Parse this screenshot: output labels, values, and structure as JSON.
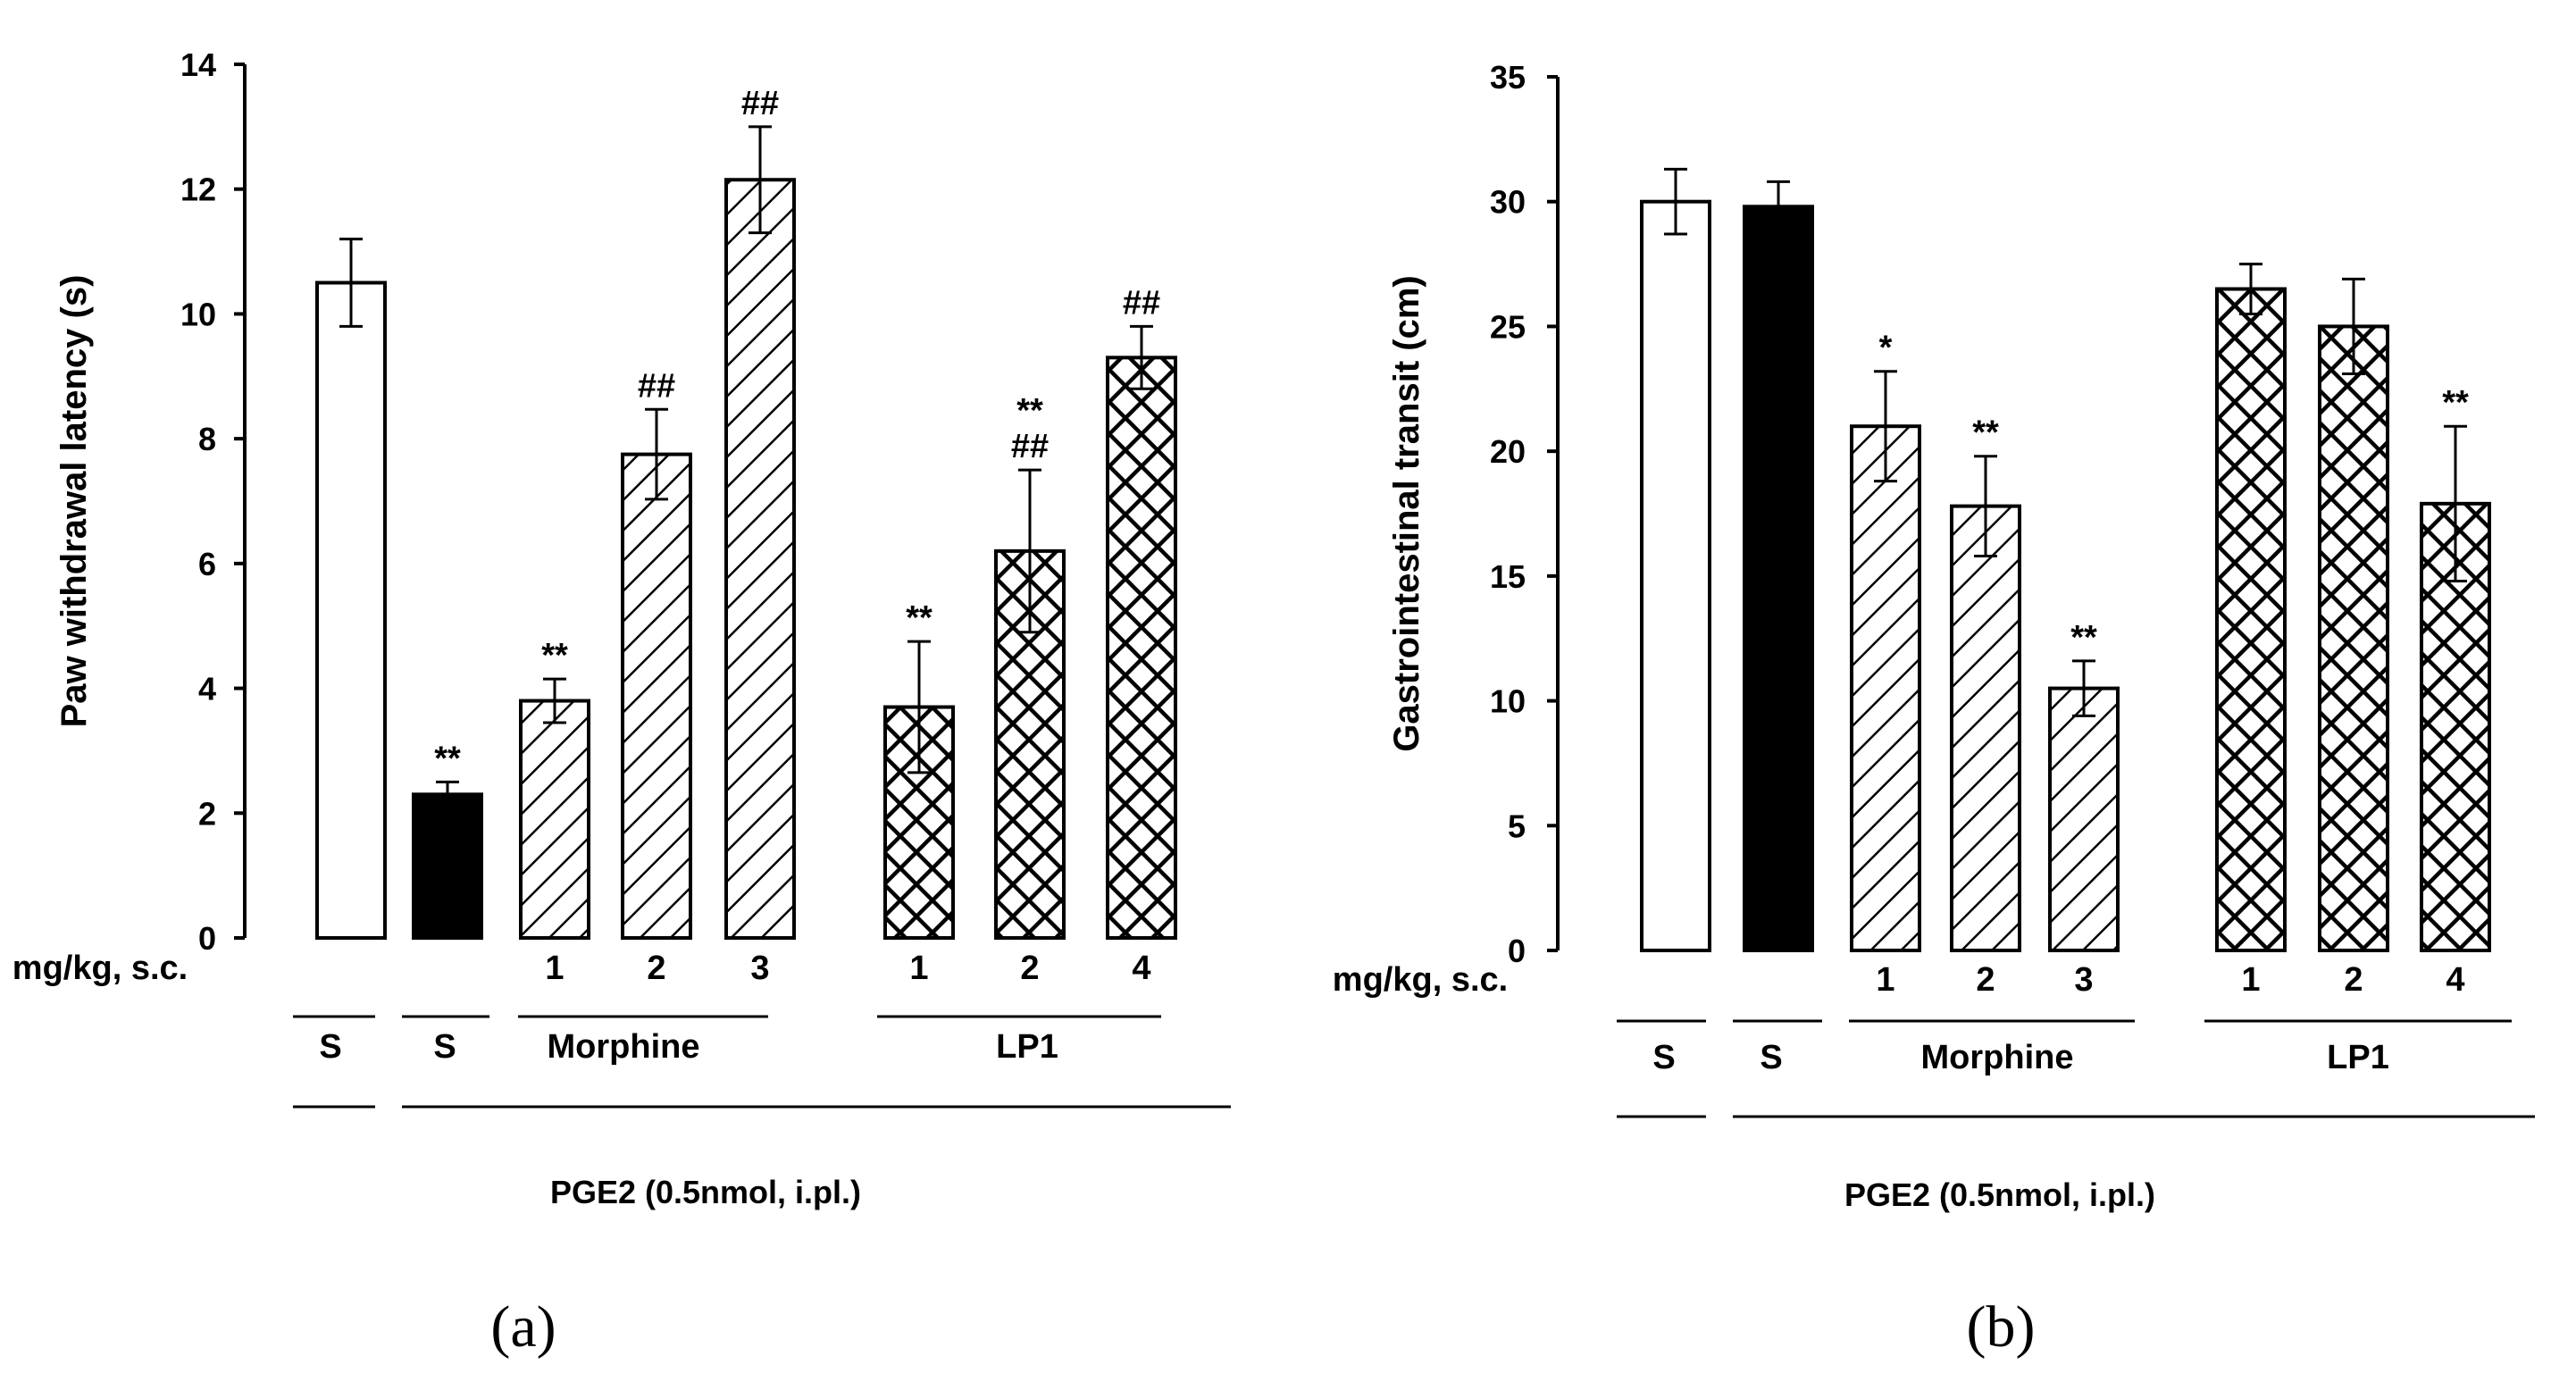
{
  "chart_data": [
    {
      "type": "bar",
      "panel_label": "(a)",
      "ylabel": "Paw withdrawal latency (s)",
      "ylim": [
        0,
        14
      ],
      "yticks": [
        0,
        2,
        4,
        6,
        8,
        10,
        12,
        14
      ],
      "dose_axis_label": "mg/kg, s.c.",
      "bars": [
        {
          "group": "S",
          "dose": "",
          "fill": "white",
          "value": 10.5,
          "err": 0.7,
          "annotations": []
        },
        {
          "group": "S",
          "dose": "",
          "fill": "black",
          "value": 2.3,
          "err": 0.2,
          "annotations": [
            "**"
          ]
        },
        {
          "group": "Morphine",
          "dose": "1",
          "fill": "hatch",
          "value": 3.8,
          "err": 0.35,
          "annotations": [
            "**"
          ]
        },
        {
          "group": "Morphine",
          "dose": "2",
          "fill": "hatch",
          "value": 7.75,
          "err": 0.72,
          "annotations": [
            "##"
          ]
        },
        {
          "group": "Morphine",
          "dose": "3",
          "fill": "hatch",
          "value": 12.15,
          "err": 0.85,
          "annotations": [
            "##"
          ]
        },
        {
          "group": "LP1",
          "dose": "1",
          "fill": "crosshatch",
          "value": 3.7,
          "err": 1.05,
          "annotations": [
            "**"
          ]
        },
        {
          "group": "LP1",
          "dose": "2",
          "fill": "crosshatch",
          "value": 6.2,
          "err": 1.3,
          "annotations": [
            "**",
            "##"
          ]
        },
        {
          "group": "LP1",
          "dose": "4",
          "fill": "crosshatch",
          "value": 9.3,
          "err": 0.5,
          "annotations": [
            "##"
          ]
        }
      ],
      "group_labels": [
        "S",
        "S",
        "Morphine",
        "LP1"
      ],
      "treatment_label": "PGE2 (0.5nmol, i.pl.)"
    },
    {
      "type": "bar",
      "panel_label": "(b)",
      "ylabel": "Gastrointestinal transit (cm)",
      "ylim": [
        0,
        35
      ],
      "yticks": [
        0,
        5,
        10,
        15,
        20,
        25,
        30,
        35
      ],
      "dose_axis_label": "mg/kg, s.c.",
      "bars": [
        {
          "group": "S",
          "dose": "",
          "fill": "white",
          "value": 30.0,
          "err": 1.3,
          "annotations": []
        },
        {
          "group": "S",
          "dose": "",
          "fill": "black",
          "value": 29.8,
          "err": 1.0,
          "annotations": []
        },
        {
          "group": "Morphine",
          "dose": "1",
          "fill": "hatch",
          "value": 21.0,
          "err": 2.2,
          "annotations": [
            "*"
          ]
        },
        {
          "group": "Morphine",
          "dose": "2",
          "fill": "hatch",
          "value": 17.8,
          "err": 2.0,
          "annotations": [
            "**"
          ]
        },
        {
          "group": "Morphine",
          "dose": "3",
          "fill": "hatch",
          "value": 10.5,
          "err": 1.1,
          "annotations": [
            "**"
          ]
        },
        {
          "group": "LP1",
          "dose": "1",
          "fill": "crosshatch",
          "value": 26.5,
          "err": 1.0,
          "annotations": []
        },
        {
          "group": "LP1",
          "dose": "2",
          "fill": "crosshatch",
          "value": 25.0,
          "err": 1.9,
          "annotations": []
        },
        {
          "group": "LP1",
          "dose": "4",
          "fill": "crosshatch",
          "value": 17.9,
          "err": 3.1,
          "annotations": [
            "**"
          ]
        }
      ],
      "group_labels": [
        "S",
        "S",
        "Morphine",
        "LP1"
      ],
      "treatment_label": "PGE2 (0.5nmol, i.pl.)"
    }
  ]
}
